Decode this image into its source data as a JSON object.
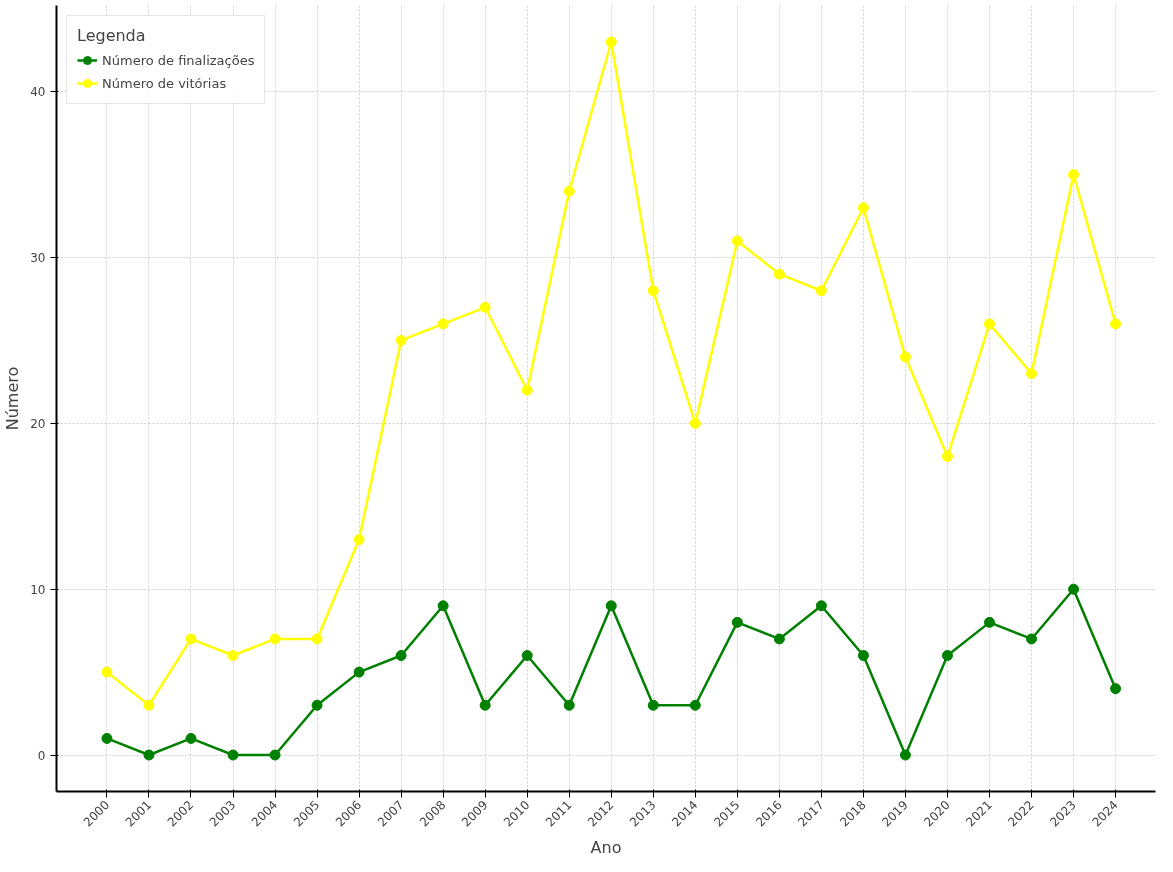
{
  "chart_data": {
    "type": "line",
    "xlabel": "Ano",
    "ylabel": "Número",
    "legend_title": "Legenda",
    "categories": [
      "2000",
      "2001",
      "2002",
      "2003",
      "2004",
      "2005",
      "2006",
      "2007",
      "2008",
      "2009",
      "2010",
      "2011",
      "2012",
      "2013",
      "2014",
      "2015",
      "2016",
      "2017",
      "2018",
      "2019",
      "2020",
      "2021",
      "2022",
      "2023",
      "2024"
    ],
    "series": [
      {
        "name": "Número de finalizações",
        "color": "#008000",
        "values": [
          1,
          0,
          1,
          0,
          0,
          3,
          5,
          6,
          9,
          3,
          6,
          3,
          9,
          3,
          3,
          8,
          7,
          9,
          6,
          0,
          6,
          8,
          7,
          10,
          4
        ]
      },
      {
        "name": "Número de vitórias",
        "color": "#ffff00",
        "values": [
          5,
          3,
          7,
          6,
          7,
          7,
          13,
          25,
          26,
          27,
          22,
          34,
          43,
          28,
          20,
          31,
          29,
          28,
          33,
          24,
          18,
          26,
          23,
          35,
          26
        ]
      }
    ],
    "ylim": [
      -2.2,
      45.2
    ],
    "yticks": [
      0,
      10,
      20,
      30,
      40
    ],
    "grid": true,
    "legend": "top left",
    "marker": "circle",
    "line_style": "solid"
  }
}
